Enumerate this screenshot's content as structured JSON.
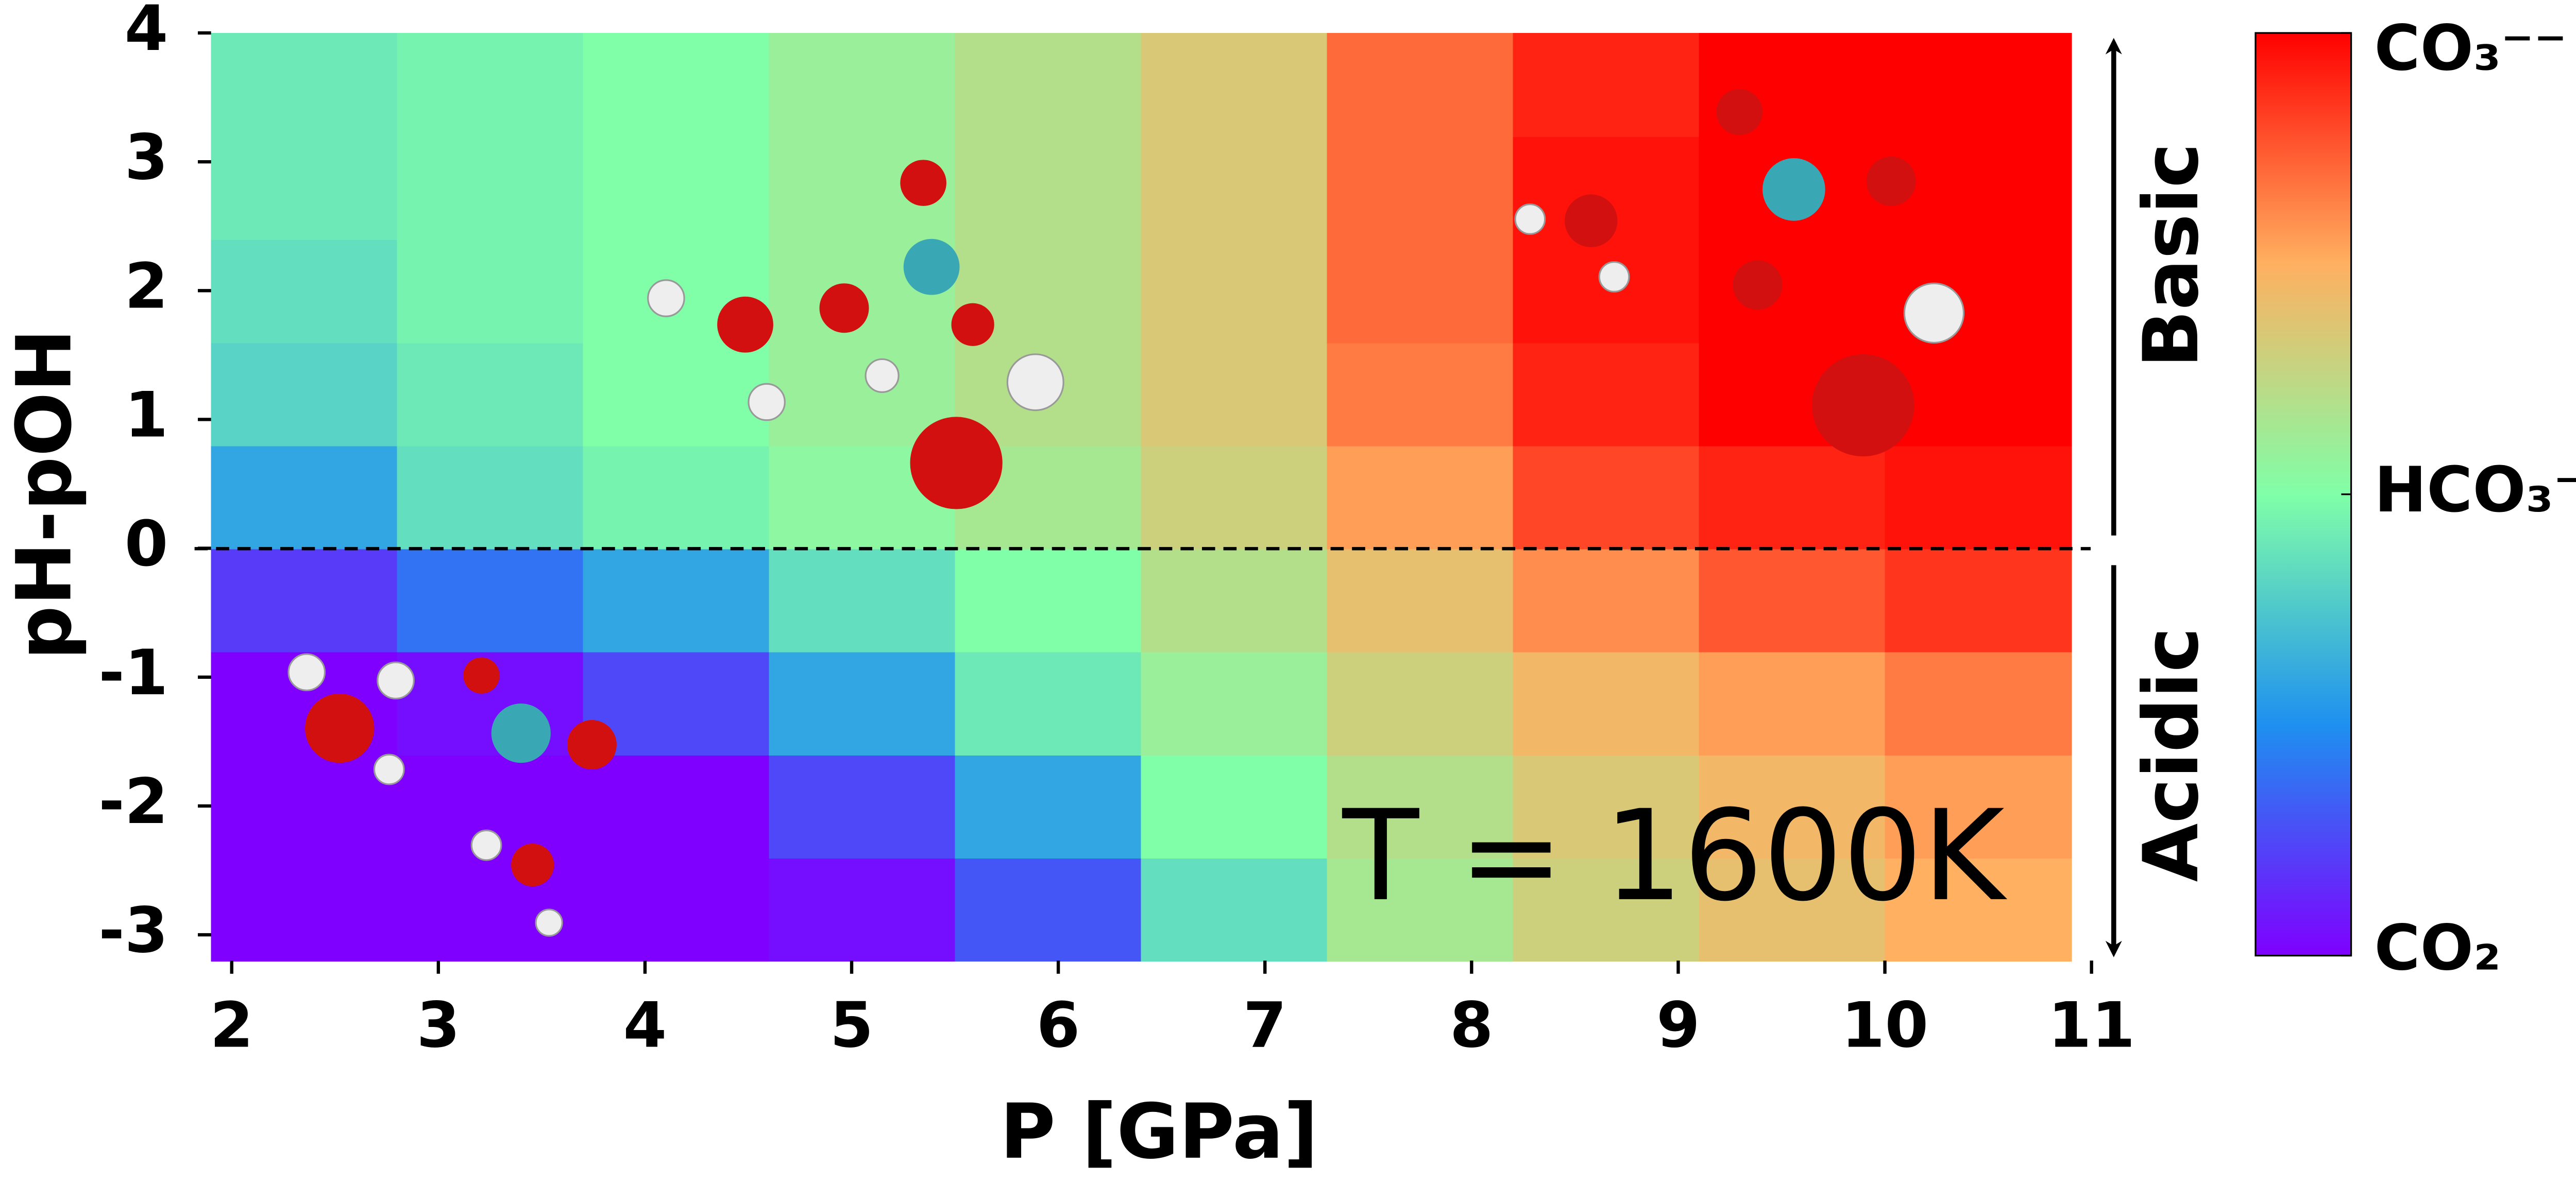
{
  "chart_data": {
    "type": "heatmap",
    "x_label": "P [GPa]",
    "y_label": "pH-pOH",
    "annotations": [
      "T = 1600K",
      "Basic",
      "Acidic"
    ],
    "x": [
      2.35,
      3.25,
      4.15,
      5.05,
      5.95,
      6.85,
      7.75,
      8.65,
      9.55,
      10.45
    ],
    "y": [
      -2.8,
      -2.0,
      -1.2,
      -0.4,
      0.4,
      1.2,
      2.0,
      2.8,
      3.6
    ],
    "z": [
      [
        0,
        0,
        0,
        0.05,
        0.3,
        0.85,
        1.15,
        1.3,
        1.4,
        1.5
      ],
      [
        0,
        0,
        0,
        0.25,
        0.6,
        1.0,
        1.2,
        1.35,
        1.45,
        1.55
      ],
      [
        0,
        0.05,
        0.25,
        0.6,
        0.9,
        1.1,
        1.3,
        1.45,
        1.55,
        1.65
      ],
      [
        0.2,
        0.4,
        0.6,
        0.85,
        1.0,
        1.2,
        1.4,
        1.6,
        1.75,
        1.85
      ],
      [
        0.6,
        0.85,
        0.95,
        1.05,
        1.15,
        1.3,
        1.55,
        1.8,
        1.9,
        1.95
      ],
      [
        0.8,
        0.9,
        1.0,
        1.1,
        1.2,
        1.35,
        1.65,
        1.9,
        2,
        2
      ],
      [
        0.85,
        0.95,
        1.0,
        1.1,
        1.2,
        1.35,
        1.7,
        1.95,
        2,
        2
      ],
      [
        0.9,
        0.95,
        1.0,
        1.1,
        1.2,
        1.35,
        1.7,
        1.95,
        2,
        2
      ],
      [
        0.9,
        0.95,
        1.0,
        1.1,
        1.2,
        1.35,
        1.7,
        1.9,
        2,
        2
      ]
    ],
    "xlim": [
      1.9,
      10.9
    ],
    "ylim": [
      -3.2,
      4
    ],
    "xticks": [
      2,
      3,
      4,
      5,
      6,
      7,
      8,
      9,
      10,
      11
    ],
    "yticks": [
      4,
      3,
      2,
      1,
      0,
      -1,
      -2,
      -3
    ],
    "colormap": [
      "#7f00ff",
      "#1e90f0",
      "#80ffa8",
      "#ffb060",
      "#ff0000"
    ],
    "clim": [
      0,
      2
    ],
    "cticks": [
      {
        "value": 2,
        "label": "CO₃⁻⁻"
      },
      {
        "value": 1,
        "label": "HCO₃⁻"
      },
      {
        "value": 0,
        "label": "CO₂"
      }
    ]
  }
}
